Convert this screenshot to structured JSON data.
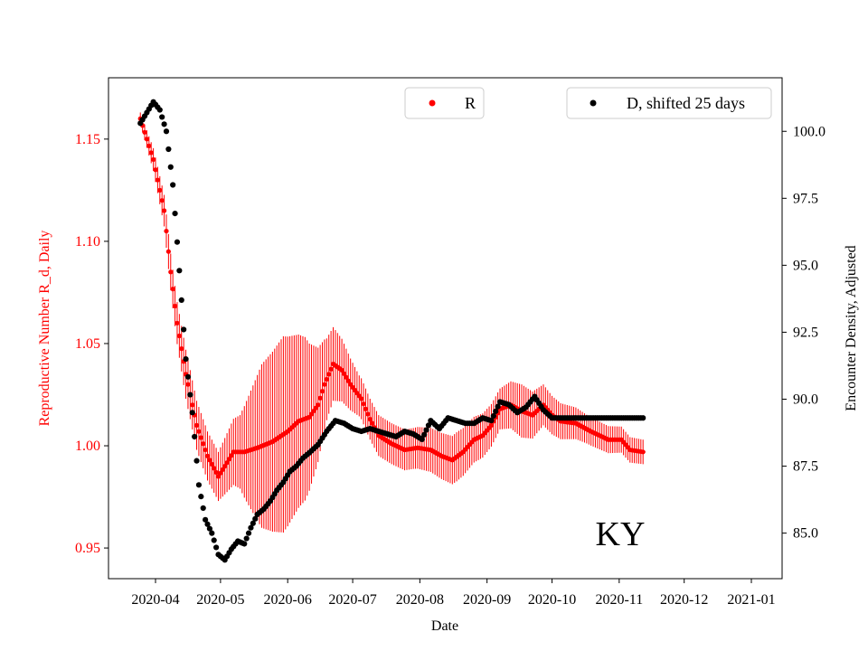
{
  "chart_data": {
    "type": "scatter",
    "title": "",
    "annotation": "KY",
    "xlabel": "Date",
    "x_tick_labels": [
      "2020-04",
      "2020-05",
      "2020-06",
      "2020-07",
      "2020-08",
      "2020-09",
      "2020-10",
      "2020-11",
      "2020-12",
      "2021-01"
    ],
    "left_axis": {
      "label": "Reproductive Number R_d, Daily",
      "color": "#ff0000",
      "ylim": [
        0.935,
        1.18
      ],
      "ticks": [
        0.95,
        1.0,
        1.05,
        1.1,
        1.15
      ],
      "tick_labels": [
        "0.95",
        "1.00",
        "1.05",
        "1.10",
        "1.15"
      ]
    },
    "right_axis": {
      "label": "Encounter Density, Adjusted",
      "color": "#000000",
      "ylim": [
        83.3,
        102.0
      ],
      "ticks": [
        85.0,
        87.5,
        90.0,
        92.5,
        95.0,
        97.5,
        100.0
      ],
      "tick_labels": [
        "85.0",
        "87.5",
        "90.0",
        "92.5",
        "95.0",
        "97.5",
        "100.0"
      ]
    },
    "legend": [
      {
        "label": "R",
        "color": "#ff0000",
        "placement": "upper-center"
      },
      {
        "label": "D, shifted 25 days",
        "color": "#000000",
        "placement": "upper-right"
      }
    ],
    "series": [
      {
        "name": "R",
        "axis": "left",
        "color": "#ff0000",
        "x_day_offset_from_2020_03_01": 24,
        "keypoints": [
          [
            24,
            1.16
          ],
          [
            30,
            1.14
          ],
          [
            35,
            1.115
          ],
          [
            38,
            1.085
          ],
          [
            41,
            1.06
          ],
          [
            45,
            1.035
          ],
          [
            50,
            1.01
          ],
          [
            55,
            0.995
          ],
          [
            60,
            0.985
          ],
          [
            63,
            0.99
          ],
          [
            67,
            0.997
          ],
          [
            72,
            0.997
          ],
          [
            78,
            0.999
          ],
          [
            85,
            1.002
          ],
          [
            92,
            1.007
          ],
          [
            97,
            1.012
          ],
          [
            102,
            1.014
          ],
          [
            106,
            1.02
          ],
          [
            109,
            1.03
          ],
          [
            113,
            1.04
          ],
          [
            117,
            1.037
          ],
          [
            121,
            1.03
          ],
          [
            126,
            1.023
          ],
          [
            130,
            1.013
          ],
          [
            134,
            1.005
          ],
          [
            140,
            1.001
          ],
          [
            146,
            0.998
          ],
          [
            152,
            0.999
          ],
          [
            158,
            0.998
          ],
          [
            163,
            0.995
          ],
          [
            168,
            0.993
          ],
          [
            173,
            0.997
          ],
          [
            178,
            1.003
          ],
          [
            182,
            1.005
          ],
          [
            186,
            1.01
          ],
          [
            190,
            1.018
          ],
          [
            195,
            1.02
          ],
          [
            200,
            1.017
          ],
          [
            205,
            1.015
          ],
          [
            210,
            1.02
          ],
          [
            214,
            1.015
          ],
          [
            218,
            1.012
          ],
          [
            225,
            1.011
          ],
          [
            232,
            1.007
          ],
          [
            240,
            1.003
          ],
          [
            246,
            1.003
          ],
          [
            250,
            0.998
          ],
          [
            256,
            0.997
          ]
        ],
        "error_halfwidth": [
          [
            24,
            0.003
          ],
          [
            45,
            0.012
          ],
          [
            60,
            0.012
          ],
          [
            70,
            0.018
          ],
          [
            80,
            0.04
          ],
          [
            90,
            0.048
          ],
          [
            100,
            0.04
          ],
          [
            110,
            0.02
          ],
          [
            125,
            0.01
          ],
          [
            150,
            0.01
          ],
          [
            170,
            0.012
          ],
          [
            190,
            0.01
          ],
          [
            200,
            0.013
          ],
          [
            210,
            0.01
          ],
          [
            230,
            0.007
          ],
          [
            256,
            0.006
          ]
        ]
      },
      {
        "name": "D, shifted 25 days",
        "axis": "right",
        "color": "#000000",
        "x_day_offset_from_2020_03_01": 24,
        "keypoints": [
          [
            24,
            100.3
          ],
          [
            27,
            100.7
          ],
          [
            30,
            101.1
          ],
          [
            33,
            100.8
          ],
          [
            36,
            100.0
          ],
          [
            39,
            98.0
          ],
          [
            42,
            94.8
          ],
          [
            45,
            91.5
          ],
          [
            48,
            89.5
          ],
          [
            51,
            86.8
          ],
          [
            54,
            85.5
          ],
          [
            57,
            85.0
          ],
          [
            60,
            84.2
          ],
          [
            63,
            84.0
          ],
          [
            66,
            84.4
          ],
          [
            69,
            84.7
          ],
          [
            72,
            84.6
          ],
          [
            75,
            85.2
          ],
          [
            78,
            85.7
          ],
          [
            81,
            85.9
          ],
          [
            84,
            86.2
          ],
          [
            87,
            86.6
          ],
          [
            90,
            86.9
          ],
          [
            93,
            87.3
          ],
          [
            96,
            87.5
          ],
          [
            99,
            87.8
          ],
          [
            102,
            88.0
          ],
          [
            106,
            88.3
          ],
          [
            110,
            88.8
          ],
          [
            114,
            89.2
          ],
          [
            118,
            89.1
          ],
          [
            122,
            88.9
          ],
          [
            126,
            88.8
          ],
          [
            130,
            88.9
          ],
          [
            134,
            88.8
          ],
          [
            138,
            88.7
          ],
          [
            142,
            88.6
          ],
          [
            146,
            88.8
          ],
          [
            150,
            88.7
          ],
          [
            154,
            88.5
          ],
          [
            158,
            89.2
          ],
          [
            162,
            88.9
          ],
          [
            166,
            89.3
          ],
          [
            170,
            89.2
          ],
          [
            174,
            89.1
          ],
          [
            178,
            89.1
          ],
          [
            182,
            89.3
          ],
          [
            186,
            89.2
          ],
          [
            190,
            89.9
          ],
          [
            194,
            89.8
          ],
          [
            198,
            89.5
          ],
          [
            202,
            89.7
          ],
          [
            206,
            90.1
          ],
          [
            210,
            89.6
          ],
          [
            214,
            89.3
          ],
          [
            218,
            89.3
          ],
          [
            256,
            89.3
          ]
        ]
      }
    ]
  }
}
